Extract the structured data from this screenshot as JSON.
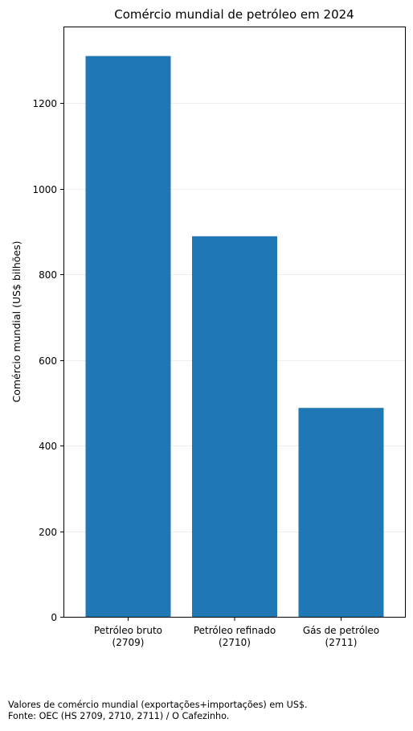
{
  "chart_data": {
    "type": "bar",
    "title": "Comércio mundial de petróleo em 2024",
    "xlabel": "",
    "ylabel": "Comércio mundial (US$ bilhões)",
    "categories": [
      [
        "Petróleo bruto",
        "(2709)"
      ],
      [
        "Petróleo refinado",
        "(2710)"
      ],
      [
        "Gás de petróleo",
        "(2711)"
      ]
    ],
    "values": [
      1310,
      889,
      488
    ],
    "ylim": [
      0,
      1377
    ],
    "yticks": [
      0,
      200,
      400,
      600,
      800,
      1000,
      1200
    ],
    "grid": "horizontal",
    "bar_color": "#1f77b4"
  },
  "footnote": {
    "line1": "Valores de comércio mundial (exportações+importações) em US$.",
    "line2": "Fonte: OEC (HS 2709, 2710, 2711) / O Cafezinho."
  }
}
